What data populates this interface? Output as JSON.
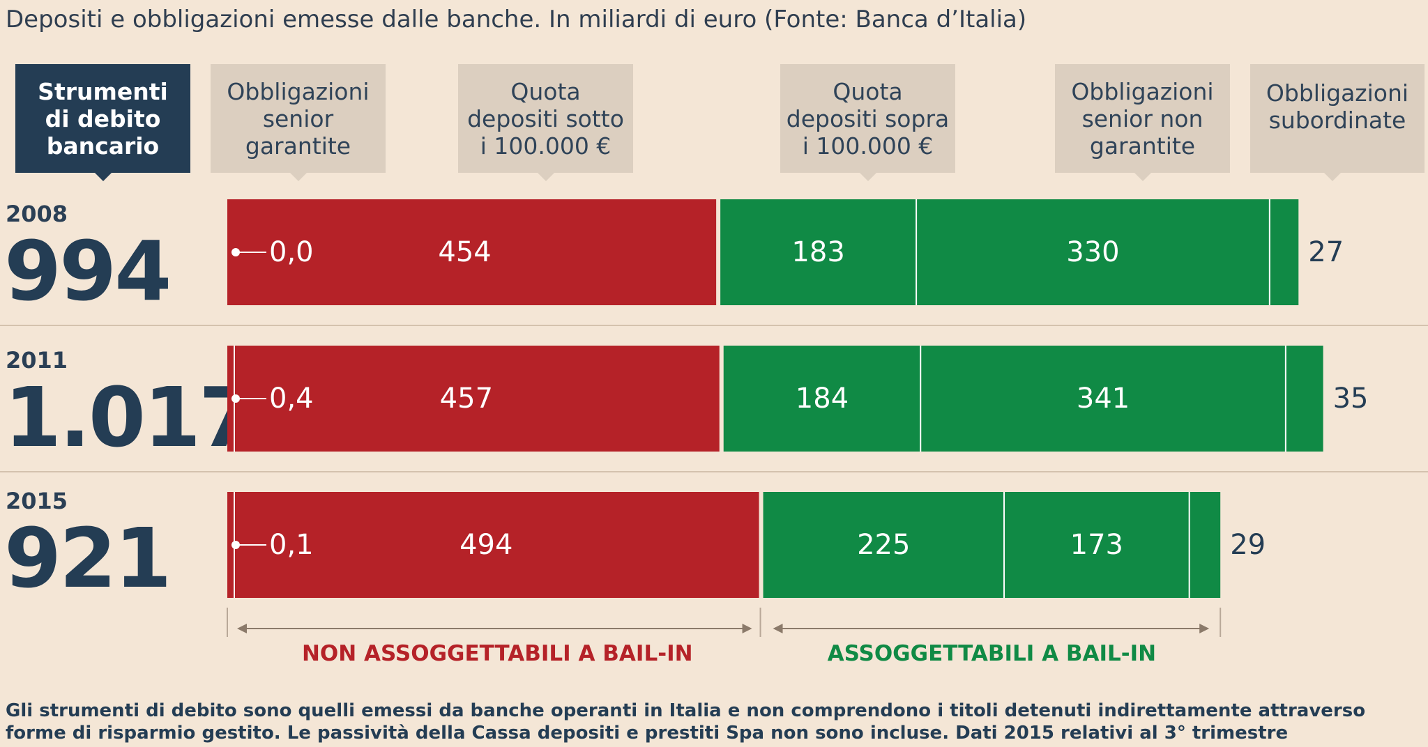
{
  "title": "Depositi e obbligazioni emesse dalle banche. In miliardi di euro (Fonte: Banca d’Italia)",
  "headers": {
    "instrument": "Strumenti\ndi debito\nbancario",
    "senior_secured": "Obbligazioni\nsenior\ngarantite",
    "deposits_under": "Quota\ndepositi sotto\ni 100.000 €",
    "deposits_over": "Quota\ndepositi sopra\ni 100.000 €",
    "senior_unsecured": "Obbligazioni\nsenior non\ngarantite",
    "subordinated": "Obbligazioni\nsubordinate"
  },
  "rows": [
    {
      "year": "2008",
      "total": "994"
    },
    {
      "year": "2011",
      "total": "1.017"
    },
    {
      "year": "2015",
      "total": "921"
    }
  ],
  "colors": {
    "not_bailin": "#b52228",
    "bailin": "#108a45",
    "navy": "#243d54",
    "arrow": "#8b7a6a"
  },
  "chart_data": {
    "type": "bar",
    "orientation": "horizontal",
    "stacked": true,
    "categories": [
      "2008",
      "2011",
      "2015"
    ],
    "series": [
      {
        "name": "Obbligazioni senior garantite",
        "values": [
          0.0,
          0.4,
          0.1
        ],
        "labels": [
          "0,0",
          "0,4",
          "0,1"
        ]
      },
      {
        "name": "Quota depositi sotto i 100.000 €",
        "values": [
          454,
          457,
          494
        ],
        "labels": [
          "454",
          "457",
          "494"
        ]
      },
      {
        "name": "Quota depositi sopra i 100.000 €",
        "values": [
          183,
          184,
          225
        ],
        "labels": [
          "183",
          "184",
          "225"
        ]
      },
      {
        "name": "Obbligazioni senior non garantite",
        "values": [
          330,
          341,
          173
        ],
        "labels": [
          "330",
          "341",
          "173"
        ]
      },
      {
        "name": "Obbligazioni subordinate",
        "values": [
          27,
          35,
          29
        ],
        "labels": [
          "27",
          "35",
          "29"
        ]
      }
    ],
    "groups": {
      "not_bailin": "NON ASSOGGETTABILI A BAIL-IN",
      "bailin": "ASSOGGETTABILI A BAIL-IN"
    }
  },
  "footnote": "Gli strumenti di debito sono quelli emessi  da banche operanti in Italia e non comprendono i titoli detenuti indirettamente attraverso forme di risparmio gestito. Le passività della Cassa depositi e  prestiti Spa non sono incluse. Dati 2015 relativi al 3° trimestre"
}
